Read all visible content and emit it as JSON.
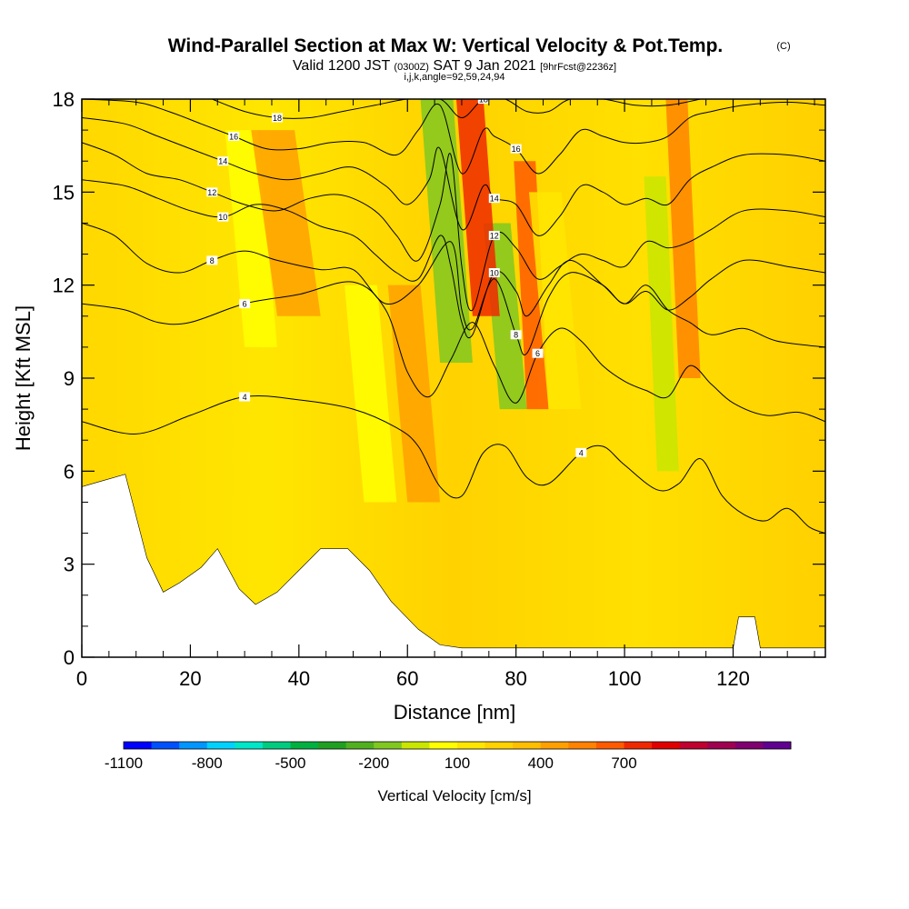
{
  "title": "Wind-Parallel Section at Max W: Vertical Velocity & Pot.Temp.",
  "title_mark": "(C)",
  "subtitle_parts": {
    "valid": "Valid 1200 JST",
    "utc": "(0300Z)",
    "date": "SAT 9 Jan 2021",
    "forecast": "[9hrFcst@2236z]"
  },
  "subtitle_small": "i,j,k,angle=92,59,24,94",
  "chart_data": {
    "type": "heatmap",
    "xlabel": "Distance [nm]",
    "ylabel": "Height [Kft MSL]",
    "xlim": [
      0,
      137
    ],
    "ylim": [
      0,
      18
    ],
    "x_ticks": [
      "0",
      "20",
      "40",
      "60",
      "80",
      "100",
      "120"
    ],
    "y_ticks": [
      "0",
      "3",
      "6",
      "9",
      "12",
      "15",
      "18"
    ],
    "colorbar": {
      "title": "Vertical Velocity [cm/s]",
      "tick_labels": [
        "-1100",
        "-800",
        "-500",
        "-200",
        "100",
        "400",
        "700"
      ],
      "colors": [
        "#0000ff",
        "#0050ff",
        "#0096ff",
        "#00d2ff",
        "#00e6c8",
        "#00cc80",
        "#00b040",
        "#20a020",
        "#50b020",
        "#80c820",
        "#c8e600",
        "#ffff00",
        "#ffe600",
        "#ffd200",
        "#ffbe00",
        "#ffa000",
        "#ff8200",
        "#ff5a00",
        "#f02800",
        "#e00000",
        "#c00030",
        "#a00050",
        "#800070",
        "#600090"
      ]
    },
    "terrain": [
      [
        0,
        5.5
      ],
      [
        4,
        5.7
      ],
      [
        8,
        5.9
      ],
      [
        12,
        3.2
      ],
      [
        15,
        2.1
      ],
      [
        18,
        2.4
      ],
      [
        22,
        2.9
      ],
      [
        25,
        3.5
      ],
      [
        29,
        2.2
      ],
      [
        32,
        1.7
      ],
      [
        36,
        2.1
      ],
      [
        40,
        2.8
      ],
      [
        44,
        3.5
      ],
      [
        49,
        3.5
      ],
      [
        53,
        2.8
      ],
      [
        57,
        1.8
      ],
      [
        62,
        0.9
      ],
      [
        66,
        0.4
      ],
      [
        70,
        0.3
      ],
      [
        100,
        0.3
      ],
      [
        120,
        0.3
      ],
      [
        121,
        1.3
      ],
      [
        124,
        1.3
      ],
      [
        125,
        0.3
      ],
      [
        137,
        0.3
      ]
    ],
    "contours": [
      {
        "label": "4",
        "points": [
          [
            0,
            7.6
          ],
          [
            10,
            7.2
          ],
          [
            20,
            7.8
          ],
          [
            30,
            8.4
          ],
          [
            40,
            8.3
          ],
          [
            50,
            8.0
          ],
          [
            58,
            7.4
          ],
          [
            62,
            6.8
          ],
          [
            66,
            5.5
          ],
          [
            70,
            5.2
          ],
          [
            74,
            6.6
          ],
          [
            78,
            6.8
          ],
          [
            82,
            5.8
          ],
          [
            86,
            5.6
          ],
          [
            92,
            6.6
          ],
          [
            96,
            6.8
          ],
          [
            100,
            6.2
          ],
          [
            106,
            5.4
          ],
          [
            110,
            5.6
          ],
          [
            114,
            6.4
          ],
          [
            118,
            5.2
          ],
          [
            122,
            4.6
          ],
          [
            126,
            4.4
          ],
          [
            130,
            4.8
          ],
          [
            134,
            4.2
          ],
          [
            137,
            4.0
          ]
        ]
      },
      {
        "label": "6",
        "points": [
          [
            0,
            11.4
          ],
          [
            8,
            11.2
          ],
          [
            14,
            10.8
          ],
          [
            20,
            10.8
          ],
          [
            30,
            11.4
          ],
          [
            40,
            11.7
          ],
          [
            50,
            12.1
          ],
          [
            56,
            11.2
          ],
          [
            60,
            9.2
          ],
          [
            64,
            8.4
          ],
          [
            68,
            9.6
          ],
          [
            72,
            10.8
          ],
          [
            76,
            9.4
          ],
          [
            80,
            8.2
          ],
          [
            84,
            9.8
          ],
          [
            88,
            10.6
          ],
          [
            92,
            10.2
          ],
          [
            96,
            9.4
          ],
          [
            100,
            8.9
          ],
          [
            104,
            8.6
          ],
          [
            108,
            8.4
          ],
          [
            112,
            9.4
          ],
          [
            116,
            8.8
          ],
          [
            120,
            8.2
          ],
          [
            126,
            7.8
          ],
          [
            132,
            7.9
          ],
          [
            137,
            7.6
          ]
        ]
      },
      {
        "label": "8",
        "points": [
          [
            0,
            14.0
          ],
          [
            6,
            13.6
          ],
          [
            12,
            12.7
          ],
          [
            18,
            12.4
          ],
          [
            24,
            12.8
          ],
          [
            30,
            13.1
          ],
          [
            36,
            12.8
          ],
          [
            44,
            12.5
          ],
          [
            50,
            12.5
          ],
          [
            56,
            11.4
          ],
          [
            62,
            12.0
          ],
          [
            68,
            13.4
          ],
          [
            70,
            11.2
          ],
          [
            72,
            10.6
          ],
          [
            76,
            12.2
          ],
          [
            80,
            10.4
          ],
          [
            82,
            9.8
          ],
          [
            86,
            11.6
          ],
          [
            90,
            12.4
          ],
          [
            96,
            12.0
          ],
          [
            100,
            11.4
          ],
          [
            104,
            12.0
          ],
          [
            108,
            11.2
          ],
          [
            112,
            10.8
          ],
          [
            116,
            10.4
          ],
          [
            122,
            10.6
          ],
          [
            128,
            10.2
          ],
          [
            137,
            10.0
          ]
        ]
      },
      {
        "label": "10",
        "points": [
          [
            0,
            15.4
          ],
          [
            8,
            15.2
          ],
          [
            14,
            14.8
          ],
          [
            20,
            14.4
          ],
          [
            26,
            14.2
          ],
          [
            32,
            14.6
          ],
          [
            38,
            14.4
          ],
          [
            44,
            13.9
          ],
          [
            50,
            13.6
          ],
          [
            54,
            13.0
          ],
          [
            58,
            12.4
          ],
          [
            62,
            12.2
          ],
          [
            66,
            13.6
          ],
          [
            68,
            12.6
          ],
          [
            70,
            10.8
          ],
          [
            72,
            10.4
          ],
          [
            76,
            12.4
          ],
          [
            80,
            11.8
          ],
          [
            82,
            11.0
          ],
          [
            86,
            12.0
          ],
          [
            90,
            12.8
          ],
          [
            96,
            12.0
          ],
          [
            100,
            11.4
          ],
          [
            104,
            11.8
          ],
          [
            108,
            11.2
          ],
          [
            112,
            11.6
          ],
          [
            116,
            12.2
          ],
          [
            122,
            12.8
          ],
          [
            130,
            12.6
          ],
          [
            137,
            12.4
          ]
        ]
      },
      {
        "label": "12",
        "points": [
          [
            0,
            16.6
          ],
          [
            6,
            16.2
          ],
          [
            12,
            15.6
          ],
          [
            18,
            15.4
          ],
          [
            24,
            15.0
          ],
          [
            30,
            14.6
          ],
          [
            36,
            14.4
          ],
          [
            42,
            14.8
          ],
          [
            48,
            14.9
          ],
          [
            54,
            14.4
          ],
          [
            58,
            13.6
          ],
          [
            62,
            12.8
          ],
          [
            66,
            14.6
          ],
          [
            68,
            16.2
          ],
          [
            70,
            12.6
          ],
          [
            72,
            11.2
          ],
          [
            76,
            13.6
          ],
          [
            80,
            13.2
          ],
          [
            84,
            12.2
          ],
          [
            88,
            12.6
          ],
          [
            92,
            13.0
          ],
          [
            96,
            12.8
          ],
          [
            100,
            12.6
          ],
          [
            104,
            13.4
          ],
          [
            108,
            13.2
          ],
          [
            112,
            13.4
          ],
          [
            116,
            13.8
          ],
          [
            122,
            14.4
          ],
          [
            130,
            14.4
          ],
          [
            137,
            14.2
          ]
        ]
      },
      {
        "label": "14",
        "points": [
          [
            0,
            17.4
          ],
          [
            8,
            17.2
          ],
          [
            14,
            16.8
          ],
          [
            20,
            16.4
          ],
          [
            26,
            16.0
          ],
          [
            32,
            15.6
          ],
          [
            38,
            15.4
          ],
          [
            44,
            15.6
          ],
          [
            50,
            15.8
          ],
          [
            56,
            15.2
          ],
          [
            60,
            14.6
          ],
          [
            64,
            15.4
          ],
          [
            66,
            16.4
          ],
          [
            70,
            13.8
          ],
          [
            74,
            15.2
          ],
          [
            76,
            14.8
          ],
          [
            80,
            14.6
          ],
          [
            84,
            13.6
          ],
          [
            88,
            14.2
          ],
          [
            92,
            15.2
          ],
          [
            96,
            15.0
          ],
          [
            100,
            14.6
          ],
          [
            104,
            14.8
          ],
          [
            108,
            14.6
          ],
          [
            112,
            15.4
          ],
          [
            116,
            15.8
          ],
          [
            122,
            16.2
          ],
          [
            130,
            16.2
          ],
          [
            137,
            16.0
          ]
        ]
      },
      {
        "label": "16",
        "points": [
          [
            0,
            18.0
          ],
          [
            10,
            17.9
          ],
          [
            16,
            17.6
          ],
          [
            22,
            17.2
          ],
          [
            28,
            16.8
          ],
          [
            34,
            16.4
          ],
          [
            40,
            16.4
          ],
          [
            46,
            16.6
          ],
          [
            52,
            16.6
          ],
          [
            58,
            16.2
          ],
          [
            62,
            17.0
          ],
          [
            66,
            17.8
          ],
          [
            70,
            15.6
          ],
          [
            74,
            17.0
          ],
          [
            76,
            16.8
          ],
          [
            80,
            16.4
          ],
          [
            84,
            15.6
          ],
          [
            88,
            16.2
          ],
          [
            92,
            17.0
          ],
          [
            96,
            16.8
          ],
          [
            100,
            16.6
          ],
          [
            104,
            16.6
          ],
          [
            108,
            16.8
          ],
          [
            112,
            17.4
          ],
          [
            116,
            17.6
          ],
          [
            122,
            17.8
          ],
          [
            130,
            17.9
          ],
          [
            137,
            17.8
          ]
        ]
      },
      {
        "label": "18",
        "points": [
          [
            24,
            18.0
          ],
          [
            30,
            17.6
          ],
          [
            36,
            17.4
          ],
          [
            42,
            17.4
          ],
          [
            48,
            17.6
          ],
          [
            54,
            17.8
          ],
          [
            60,
            18.0
          ],
          [
            66,
            18.0
          ],
          [
            70,
            17.4
          ],
          [
            74,
            18.0
          ],
          [
            78,
            18.0
          ],
          [
            82,
            17.6
          ],
          [
            86,
            17.6
          ],
          [
            90,
            18.0
          ],
          [
            96,
            18.0
          ],
          [
            102,
            17.8
          ],
          [
            108,
            17.8
          ],
          [
            114,
            18.0
          ]
        ]
      }
    ],
    "velocity_bands": [
      {
        "value": -350,
        "x": [
          66,
          72
        ],
        "y": [
          9.5,
          18
        ]
      },
      {
        "value": -350,
        "x": [
          77,
          82
        ],
        "y": [
          8,
          14
        ]
      },
      {
        "value": -250,
        "x": [
          106,
          110
        ],
        "y": [
          6,
          15.5
        ]
      },
      {
        "value": 400,
        "x": [
          72,
          77
        ],
        "y": [
          11,
          18
        ]
      },
      {
        "value": 350,
        "x": [
          82,
          86
        ],
        "y": [
          8,
          16
        ]
      },
      {
        "value": 250,
        "x": [
          110,
          114
        ],
        "y": [
          9,
          18
        ]
      },
      {
        "value": 200,
        "x": [
          60,
          66
        ],
        "y": [
          5,
          12
        ]
      },
      {
        "value": -150,
        "x": [
          52,
          58
        ],
        "y": [
          5,
          12
        ]
      },
      {
        "value": -100,
        "x": [
          86,
          92
        ],
        "y": [
          8,
          15
        ]
      },
      {
        "value": -120,
        "x": [
          30,
          36
        ],
        "y": [
          10,
          17
        ]
      },
      {
        "value": 150,
        "x": [
          36,
          44
        ],
        "y": [
          11,
          17
        ]
      }
    ]
  }
}
